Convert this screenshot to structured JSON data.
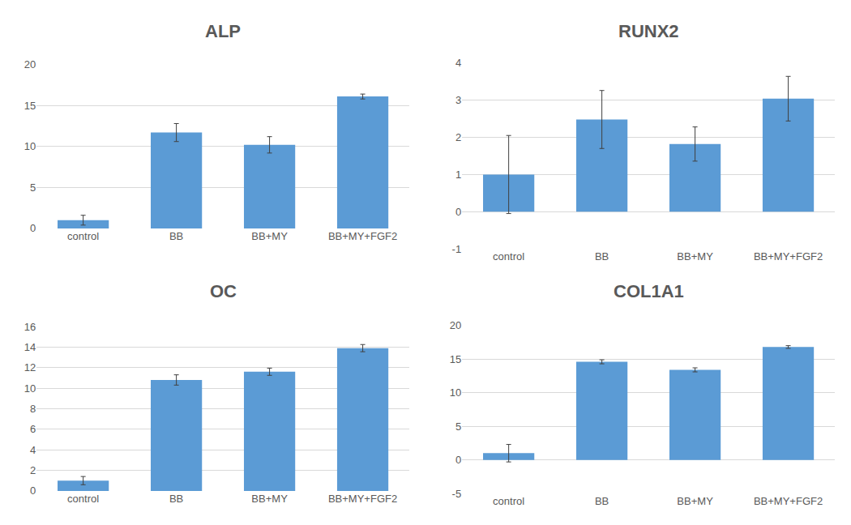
{
  "chart_data": [
    {
      "type": "bar",
      "title": "ALP",
      "categories": [
        "control",
        "BB",
        "BB+MY",
        "BB+MY+FGF2"
      ],
      "values": [
        1.0,
        11.7,
        10.2,
        16.1
      ],
      "errors": [
        0.6,
        1.1,
        1.0,
        0.3
      ],
      "color": "#5b9bd5",
      "ylim": [
        0,
        20
      ],
      "yticks": [
        0,
        5,
        10,
        15,
        20
      ],
      "grid": true
    },
    {
      "type": "bar",
      "title": "RUNX2",
      "categories": [
        "control",
        "BB",
        "BB+MY",
        "BB+MY+FGF2"
      ],
      "values": [
        1.0,
        2.48,
        1.82,
        3.04
      ],
      "errors": [
        1.05,
        0.78,
        0.46,
        0.6
      ],
      "color": "#5b9bd5",
      "ylim": [
        -1,
        4
      ],
      "yticks": [
        -1,
        0,
        1,
        2,
        3,
        4
      ],
      "grid": true
    },
    {
      "type": "bar",
      "title": "OC",
      "categories": [
        "control",
        "BB",
        "BB+MY",
        "BB+MY+FGF2"
      ],
      "values": [
        1.0,
        10.8,
        11.6,
        13.9
      ],
      "errors": [
        0.4,
        0.5,
        0.35,
        0.35
      ],
      "color": "#5b9bd5",
      "ylim": [
        0,
        16
      ],
      "yticks": [
        0,
        2,
        4,
        6,
        8,
        10,
        12,
        14,
        16
      ],
      "grid": true
    },
    {
      "type": "bar",
      "title": "COL1A1",
      "categories": [
        "control",
        "BB",
        "BB+MY",
        "BB+MY+FGF2"
      ],
      "values": [
        1.0,
        14.6,
        13.4,
        16.8
      ],
      "errors": [
        1.3,
        0.3,
        0.3,
        0.2
      ],
      "color": "#5b9bd5",
      "ylim": [
        -5,
        20
      ],
      "yticks": [
        -5,
        0,
        5,
        10,
        15,
        20
      ],
      "grid": true
    }
  ]
}
